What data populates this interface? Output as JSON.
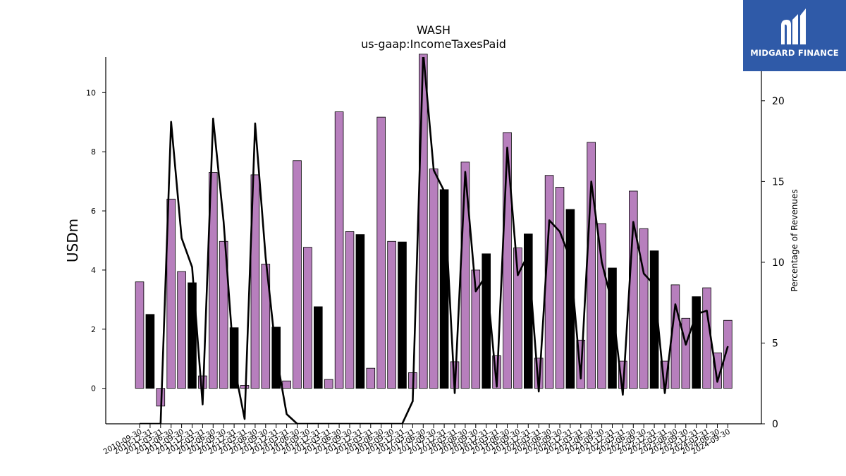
{
  "logo": {
    "text": "MIDGARD FINANCE",
    "icon": "midgard-logo-icon"
  },
  "chart_data": {
    "type": "bar",
    "title": "WASH",
    "subtitle": "us-gaap:IncomeTaxesPaid",
    "ylabel": "USDm",
    "ylabel_right": "Percentage of Revenues",
    "ylim": [
      -1.2,
      11.2
    ],
    "ylim_right": [
      0,
      22.7
    ],
    "yticks": [
      0,
      2,
      4,
      6,
      8,
      10
    ],
    "yticks_right": [
      0,
      5,
      10,
      15,
      20
    ],
    "colors": {
      "bar": "#b77fbd",
      "bar_q4": "#000000",
      "line": "#000000"
    },
    "categories": [
      "2010-09-30",
      "2010-12-31",
      "2011-03-31",
      "2011-06-30",
      "2011-09-30",
      "2011-12-31",
      "2012-03-31",
      "2012-06-30",
      "2012-09-30",
      "2012-12-31",
      "2013-03-31",
      "2013-06-30",
      "2013-09-30",
      "2013-12-31",
      "2014-03-31",
      "2014-06-30",
      "2014-09-30",
      "2014-12-31",
      "2015-03-31",
      "2015-06-30",
      "2015-09-30",
      "2015-12-31",
      "2016-03-31",
      "2016-06-30",
      "2016-09-30",
      "2016-12-31",
      "2017-03-31",
      "2017-06-30",
      "2017-09-30",
      "2017-12-31",
      "2018-03-31",
      "2018-06-30",
      "2018-09-30",
      "2018-12-31",
      "2019-03-31",
      "2019-06-30",
      "2019-09-30",
      "2019-12-31",
      "2020-03-31",
      "2020-06-30",
      "2020-09-30",
      "2020-12-31",
      "2021-03-31",
      "2021-06-30",
      "2021-09-30",
      "2021-12-31",
      "2022-03-31",
      "2022-06-30",
      "2022-09-30",
      "2022-12-31",
      "2023-03-31",
      "2023-06-30",
      "2023-09-30",
      "2023-12-31",
      "2024-03-31",
      "2024-06-30",
      "2024-09-30"
    ],
    "series": [
      {
        "values": [
          3.6,
          2.5,
          -0.6,
          6.4,
          3.95,
          3.57,
          0.42,
          7.3,
          4.97,
          2.05,
          0.1,
          7.22,
          4.2,
          2.07,
          0.25,
          7.7,
          4.77,
          2.76,
          0.3,
          9.35,
          5.3,
          5.2,
          0.68,
          9.17,
          4.97,
          4.95,
          0.53,
          11.3,
          7.42,
          6.72,
          0.9,
          7.65,
          4.0,
          4.55,
          1.1,
          8.65,
          4.75,
          5.22,
          1.02,
          7.2,
          6.8,
          6.05,
          1.63,
          8.32,
          5.57,
          4.07,
          0.92,
          6.67,
          5.4,
          4.65,
          0.92,
          3.5,
          2.37,
          3.1,
          3.4,
          1.2,
          2.3
        ]
      },
      {
        "values": [
          0,
          0,
          0,
          18.7,
          11.5,
          9.7,
          1.2,
          18.9,
          12.5,
          3.6,
          0.3,
          18.6,
          10.3,
          4.3,
          0.6,
          0,
          0,
          0,
          0,
          0,
          0,
          0,
          0,
          0,
          0,
          0,
          1.4,
          23.0,
          15.7,
          14.4,
          1.9,
          15.6,
          8.2,
          9.2,
          2.3,
          17.1,
          9.2,
          10.5,
          2.0,
          12.6,
          11.9,
          10.2,
          2.8,
          15.0,
          10.0,
          7.4,
          1.8,
          12.5,
          9.3,
          8.6,
          1.9,
          7.4,
          4.9,
          6.8,
          7.0,
          2.6,
          4.8
        ]
      }
    ]
  }
}
